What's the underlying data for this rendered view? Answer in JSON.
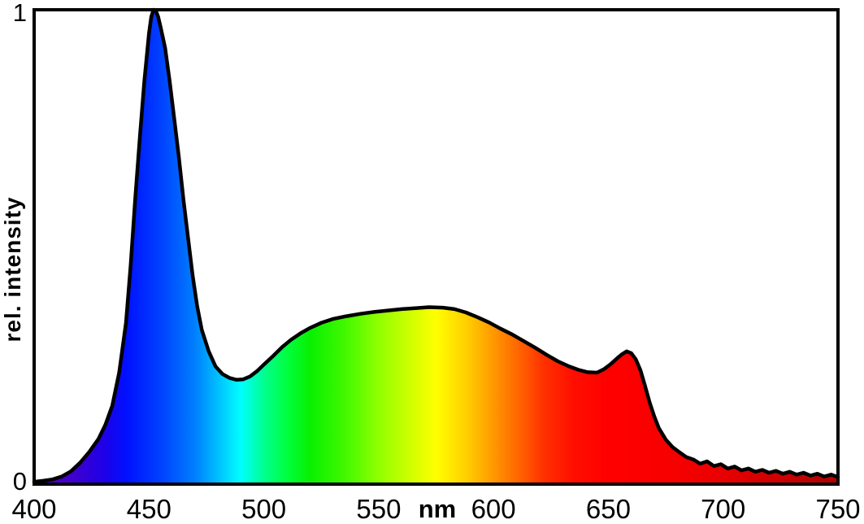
{
  "labels": {
    "y_axis": "rel. intensity",
    "y_max": "1",
    "y_min": "0",
    "x_unit": "nm"
  },
  "chart_data": {
    "type": "area",
    "title": "",
    "xlabel": "nm",
    "ylabel": "rel. intensity",
    "xlim": [
      400,
      750
    ],
    "ylim": [
      0,
      1
    ],
    "x_ticks": [
      400,
      450,
      500,
      550,
      600,
      650,
      700,
      750
    ],
    "y_ticks": [
      0,
      1
    ],
    "grid": false,
    "legend": false,
    "frame": "full box",
    "line_color": "#000000",
    "line_width": 4.5,
    "fill": "spectral gradient mapped to wavelength",
    "features": {
      "blue_peak": {
        "wavelength_nm": 452,
        "intensity": 1.0
      },
      "valley": {
        "wavelength_nm": 489,
        "intensity": 0.22
      },
      "phosphor_hump_peak": {
        "wavelength_nm": 572,
        "intensity": 0.37
      },
      "red_bump": {
        "wavelength_nm": 658,
        "intensity": 0.28
      },
      "tail_at_750": 0.015
    },
    "series": [
      {
        "name": "relative intensity spectrum",
        "x": [
          400,
          404,
          408,
          412,
          416,
          420,
          424,
          428,
          431,
          434,
          437,
          440,
          442,
          444,
          446,
          448,
          450,
          451,
          452,
          453,
          454,
          455,
          457,
          459,
          461,
          463,
          465,
          467,
          469,
          471,
          473,
          476,
          479,
          482,
          485,
          488,
          491,
          494,
          497,
          500,
          504,
          508,
          512,
          516,
          520,
          525,
          530,
          536,
          542,
          548,
          554,
          560,
          566,
          572,
          578,
          583,
          588,
          593,
          598,
          603,
          608,
          613,
          618,
          623,
          628,
          633,
          637,
          641,
          645,
          648,
          651,
          654,
          656,
          658,
          660,
          662,
          664,
          666,
          668,
          670,
          672,
          675,
          678,
          681,
          684,
          687,
          690,
          693,
          696,
          699,
          702,
          705,
          708,
          711,
          714,
          717,
          720,
          723,
          726,
          729,
          732,
          735,
          738,
          741,
          744,
          747,
          750
        ],
        "y": [
          0.005,
          0.007,
          0.01,
          0.016,
          0.027,
          0.045,
          0.068,
          0.095,
          0.125,
          0.165,
          0.235,
          0.34,
          0.46,
          0.6,
          0.73,
          0.85,
          0.95,
          0.985,
          1.0,
          0.998,
          0.985,
          0.965,
          0.92,
          0.85,
          0.77,
          0.69,
          0.6,
          0.52,
          0.44,
          0.375,
          0.325,
          0.28,
          0.248,
          0.232,
          0.224,
          0.22,
          0.221,
          0.227,
          0.238,
          0.252,
          0.27,
          0.289,
          0.305,
          0.318,
          0.329,
          0.34,
          0.348,
          0.354,
          0.359,
          0.363,
          0.366,
          0.369,
          0.371,
          0.373,
          0.372,
          0.369,
          0.362,
          0.352,
          0.341,
          0.328,
          0.316,
          0.302,
          0.288,
          0.273,
          0.259,
          0.248,
          0.241,
          0.236,
          0.235,
          0.242,
          0.253,
          0.266,
          0.274,
          0.28,
          0.276,
          0.263,
          0.24,
          0.207,
          0.172,
          0.143,
          0.118,
          0.094,
          0.078,
          0.067,
          0.057,
          0.052,
          0.043,
          0.048,
          0.038,
          0.042,
          0.033,
          0.037,
          0.029,
          0.033,
          0.026,
          0.03,
          0.024,
          0.028,
          0.022,
          0.026,
          0.02,
          0.024,
          0.018,
          0.022,
          0.016,
          0.02,
          0.015
        ]
      }
    ],
    "spectrum_stops": [
      {
        "wl": 400,
        "color": "#5b00c8"
      },
      {
        "wl": 415,
        "color": "#4400cc"
      },
      {
        "wl": 430,
        "color": "#2000e6"
      },
      {
        "wl": 440,
        "color": "#0010ff"
      },
      {
        "wl": 455,
        "color": "#0040ff"
      },
      {
        "wl": 470,
        "color": "#007fff"
      },
      {
        "wl": 482,
        "color": "#00ccff"
      },
      {
        "wl": 490,
        "color": "#00ffff"
      },
      {
        "wl": 500,
        "color": "#00ff90"
      },
      {
        "wl": 510,
        "color": "#00ff40"
      },
      {
        "wl": 520,
        "color": "#08f000"
      },
      {
        "wl": 535,
        "color": "#40f800"
      },
      {
        "wl": 550,
        "color": "#90ff00"
      },
      {
        "wl": 562,
        "color": "#c8ff00"
      },
      {
        "wl": 575,
        "color": "#ffff00"
      },
      {
        "wl": 588,
        "color": "#ffd000"
      },
      {
        "wl": 600,
        "color": "#ff9800"
      },
      {
        "wl": 612,
        "color": "#ff6000"
      },
      {
        "wl": 622,
        "color": "#ff3000"
      },
      {
        "wl": 635,
        "color": "#ff0e00"
      },
      {
        "wl": 650,
        "color": "#ff0000"
      },
      {
        "wl": 680,
        "color": "#f60000"
      },
      {
        "wl": 700,
        "color": "#e80000"
      },
      {
        "wl": 725,
        "color": "#cc0000"
      },
      {
        "wl": 750,
        "color": "#b00000"
      }
    ]
  }
}
